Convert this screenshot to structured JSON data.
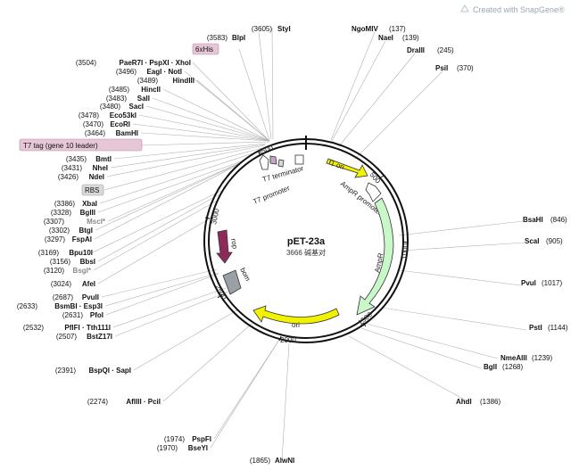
{
  "header": {
    "credit_text": "Created with SnapGene®"
  },
  "plasmid": {
    "name": "pET-23a",
    "length_label": "3666 碱基对"
  },
  "features": [
    {
      "label": "f1 ori",
      "color": "#f2f200"
    },
    {
      "label": "AmpR promoter",
      "color": "#ffffff"
    },
    {
      "label": "AmpR",
      "color": "#c8f7c8"
    },
    {
      "label": "ori",
      "color": "#f2f200"
    },
    {
      "label": "bom",
      "color": "#9aa0a6"
    },
    {
      "label": "rop",
      "color": "#8e2a5a"
    },
    {
      "label": "T7 promoter",
      "color": "#ffffff"
    },
    {
      "label": "T7 terminator",
      "color": "#ffffff"
    }
  ],
  "annotations": {
    "six_his": "6xHis",
    "t7_tag": "T7 tag (gene 10 leader)",
    "rbs": "RBS"
  },
  "tick_labels": [
    "500",
    "1000",
    "1500",
    "2000",
    "2500",
    "3000",
    "3500"
  ],
  "sites": [
    {
      "pos": "(3605)",
      "name": "StyI"
    },
    {
      "pos": "(3583)",
      "name": "BlpI"
    },
    {
      "pos": "(3504)",
      "name": "PaeR7I · PspXI · XhoI"
    },
    {
      "pos": "(3496)",
      "name": "EagI · NotI"
    },
    {
      "pos": "(3489)",
      "name": "HindIII"
    },
    {
      "pos": "(3485)",
      "name": "HincII"
    },
    {
      "pos": "(3483)",
      "name": "SalI"
    },
    {
      "pos": "(3480)",
      "name": "SacI"
    },
    {
      "pos": "(3478)",
      "name": "Eco53kI"
    },
    {
      "pos": "(3470)",
      "name": "EcoRI"
    },
    {
      "pos": "(3464)",
      "name": "BamHI"
    },
    {
      "pos": "(3435)",
      "name": "BmtI"
    },
    {
      "pos": "(3431)",
      "name": "NheI"
    },
    {
      "pos": "(3426)",
      "name": "NdeI"
    },
    {
      "pos": "(3386)",
      "name": "XbaI"
    },
    {
      "pos": "(3328)",
      "name": "BglII"
    },
    {
      "pos": "(3307)",
      "name": "MscI*"
    },
    {
      "pos": "(3302)",
      "name": "BtgI"
    },
    {
      "pos": "(3297)",
      "name": "FspAI"
    },
    {
      "pos": "(3169)",
      "name": "Bpu10I"
    },
    {
      "pos": "(3156)",
      "name": "BbsI"
    },
    {
      "pos": "(3120)",
      "name": "BsgI*"
    },
    {
      "pos": "(3024)",
      "name": "AfeI"
    },
    {
      "pos": "(2687)",
      "name": "PvuII"
    },
    {
      "pos": "(2633)",
      "name": "BsmBI · Esp3I"
    },
    {
      "pos": "(2631)",
      "name": "PfoI"
    },
    {
      "pos": "(2532)",
      "name": "PflFI · Tth111I"
    },
    {
      "pos": "(2507)",
      "name": "BstZ17I"
    },
    {
      "pos": "(2391)",
      "name": "BspQI · SapI"
    },
    {
      "pos": "(2274)",
      "name": "AflIII · PciI"
    },
    {
      "pos": "(1974)",
      "name": "PspFI"
    },
    {
      "pos": "(1970)",
      "name": "BseYI"
    },
    {
      "pos": "(1865)",
      "name": "AlwNI"
    },
    {
      "pos": "(137)",
      "name": "NgoMIV"
    },
    {
      "pos": "(139)",
      "name": "NaeI"
    },
    {
      "pos": "(245)",
      "name": "DraIII"
    },
    {
      "pos": "(370)",
      "name": "PsiI"
    },
    {
      "pos": "(846)",
      "name": "BsaHI"
    },
    {
      "pos": "(905)",
      "name": "ScaI"
    },
    {
      "pos": "(1017)",
      "name": "PvuI"
    },
    {
      "pos": "(1144)",
      "name": "PstI"
    },
    {
      "pos": "(1239)",
      "name": "NmeAIII"
    },
    {
      "pos": "(1268)",
      "name": "BglI"
    },
    {
      "pos": "(1386)",
      "name": "AhdI"
    }
  ]
}
